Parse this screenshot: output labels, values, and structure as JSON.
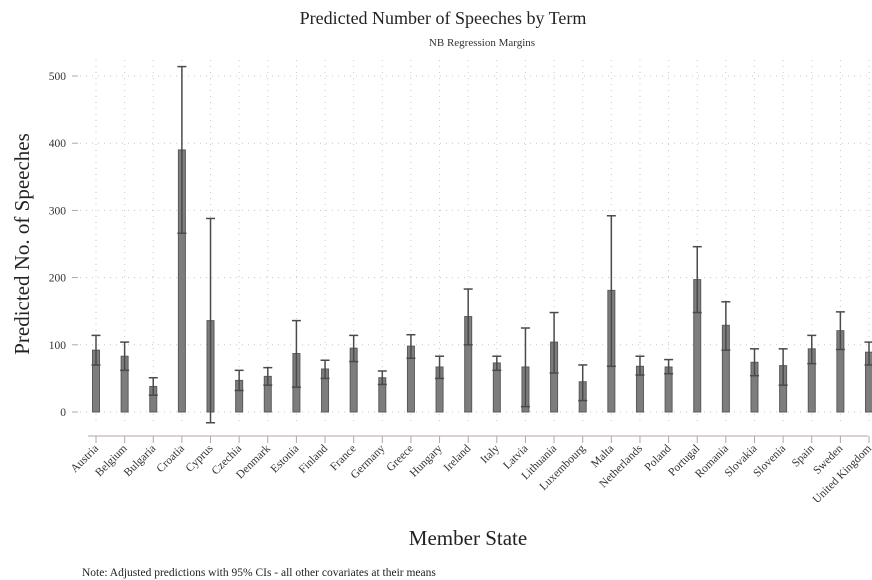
{
  "chart_data": {
    "type": "bar",
    "title": "Predicted Number of Speeches by Term",
    "subtitle": "NB Regression Margins",
    "xlabel": "Member State",
    "ylabel": "Predicted No. of Speeches",
    "note": "Note: Adjusted predictions with 95% CIs - all other covariates at their means",
    "ylim": [
      -20,
      520
    ],
    "yticks": [
      0,
      100,
      200,
      300,
      400,
      500
    ],
    "grid": true,
    "categories": [
      "Austria",
      "Belgium",
      "Bulgaria",
      "Croatia",
      "Cyprus",
      "Czechia",
      "Denmark",
      "Estonia",
      "Finland",
      "France",
      "Germany",
      "Greece",
      "Hungary",
      "Ireland",
      "Italy",
      "Latvia",
      "Lithuania",
      "Luxembourg",
      "Malta",
      "Netherlands",
      "Poland",
      "Portugal",
      "Romania",
      "Slovakia",
      "Slovenia",
      "Spain",
      "Sweden",
      "United Kingdom"
    ],
    "values": [
      92,
      83,
      38,
      390,
      136,
      47,
      53,
      87,
      64,
      95,
      51,
      98,
      67,
      142,
      73,
      67,
      104,
      45,
      181,
      68,
      67,
      197,
      129,
      74,
      69,
      94,
      121,
      89
    ],
    "ci_lower": [
      70,
      62,
      25,
      266,
      -16,
      32,
      40,
      37,
      50,
      75,
      41,
      80,
      50,
      100,
      62,
      8,
      58,
      17,
      68,
      55,
      57,
      148,
      92,
      54,
      40,
      72,
      93,
      70
    ],
    "ci_upper": [
      114,
      104,
      51,
      514,
      288,
      62,
      66,
      136,
      77,
      114,
      61,
      115,
      83,
      183,
      83,
      125,
      148,
      70,
      292,
      83,
      78,
      246,
      164,
      94,
      94,
      114,
      149,
      104
    ],
    "bar_color": "#7d7d7d",
    "error_bar_color": "#4a4a4a",
    "grid_color": "#c8c8c8",
    "axis_color": "#b7a3a3"
  }
}
